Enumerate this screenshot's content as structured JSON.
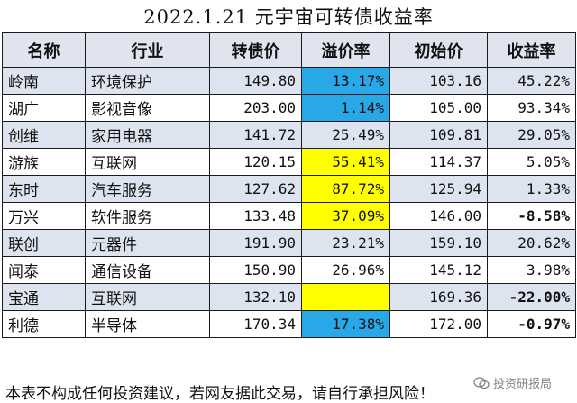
{
  "title": "2022.1.21 元宇宙可转债收益率",
  "headers": [
    "名称",
    "行业",
    "转债价",
    "溢价率",
    "初始价",
    "收益率"
  ],
  "rows": [
    {
      "name": "岭南",
      "industry": "环境保护",
      "price": "149.80",
      "premium": "13.17%",
      "initial": "103.16",
      "yield": "45.22%",
      "premium_highlight": "blue",
      "yield_negative": false,
      "shade": true
    },
    {
      "name": "湖广",
      "industry": "影视音像",
      "price": "203.00",
      "premium": "1.14%",
      "initial": "105.00",
      "yield": "93.34%",
      "premium_highlight": "blue",
      "yield_negative": false,
      "shade": false
    },
    {
      "name": "创维",
      "industry": "家用电器",
      "price": "141.72",
      "premium": "25.49%",
      "initial": "109.81",
      "yield": "29.05%",
      "premium_highlight": "",
      "yield_negative": false,
      "shade": true
    },
    {
      "name": "游族",
      "industry": "互联网",
      "price": "120.15",
      "premium": "55.41%",
      "initial": "114.37",
      "yield": "5.05%",
      "premium_highlight": "yellow",
      "yield_negative": false,
      "shade": false
    },
    {
      "name": "东时",
      "industry": "汽车服务",
      "price": "127.62",
      "premium": "87.72%",
      "initial": "125.94",
      "yield": "1.33%",
      "premium_highlight": "yellow",
      "yield_negative": false,
      "shade": true
    },
    {
      "name": "万兴",
      "industry": "软件服务",
      "price": "133.48",
      "premium": "37.09%",
      "initial": "146.00",
      "yield": "-8.58%",
      "premium_highlight": "yellow",
      "yield_negative": true,
      "shade": false
    },
    {
      "name": "联创",
      "industry": "元器件",
      "price": "191.90",
      "premium": "23.21%",
      "initial": "159.10",
      "yield": "20.62%",
      "premium_highlight": "",
      "yield_negative": false,
      "shade": true
    },
    {
      "name": "闻泰",
      "industry": "通信设备",
      "price": "150.90",
      "premium": "26.96%",
      "initial": "145.12",
      "yield": "3.98%",
      "premium_highlight": "",
      "yield_negative": false,
      "shade": false
    },
    {
      "name": "宝通",
      "industry": "互联网",
      "price": "132.10",
      "premium": "",
      "initial": "169.36",
      "yield": "-22.00%",
      "premium_highlight": "yellow",
      "yield_negative": true,
      "shade": true
    },
    {
      "name": "利德",
      "industry": "半导体",
      "price": "170.34",
      "premium": "17.38%",
      "initial": "172.00",
      "yield": "-0.97%",
      "premium_highlight": "blue",
      "yield_negative": true,
      "shade": false
    }
  ],
  "footer": "本表不构成任何投资建议，若网友据此交易，请自行承担风险！",
  "watermark": "投资研报局",
  "colors": {
    "header_bg": "#dfe4ee",
    "row_shade": "#dde4f0",
    "highlight_blue": "#29a8e8",
    "highlight_yellow": "#ffff00"
  }
}
